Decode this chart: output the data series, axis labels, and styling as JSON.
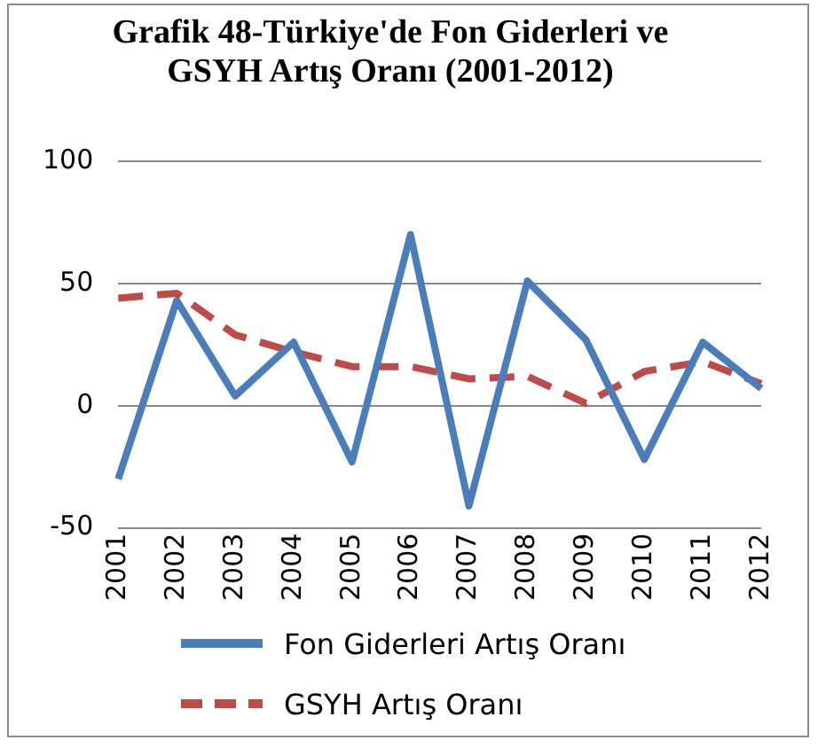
{
  "chart_data": {
    "type": "line",
    "title": "Grafik 48-Türkiye'de Fon Giderleri ve GSYH Artış Oranı (2001-2012)",
    "categories": [
      "2001",
      "2002",
      "2003",
      "2004",
      "2005",
      "2006",
      "2007",
      "2008",
      "2009",
      "2010",
      "2011",
      "2012"
    ],
    "series": [
      {
        "name": "Fon Giderleri Artış Oranı",
        "color": "#4a7ebb",
        "line_style": "solid",
        "values": [
          -30,
          43,
          4,
          26,
          -23,
          70,
          -41,
          51,
          27,
          -22,
          26,
          7
        ]
      },
      {
        "name": "GSYH Artış Oranı",
        "color": "#be4b48",
        "line_style": "dashed",
        "values": [
          44,
          46,
          29,
          22,
          16,
          16,
          11,
          12,
          1,
          14,
          18,
          9
        ]
      }
    ],
    "ylim": [
      -50,
      100
    ],
    "yticks": [
      -50,
      0,
      50,
      100
    ],
    "grid": "y",
    "legend": "bottom",
    "marker": "none"
  }
}
